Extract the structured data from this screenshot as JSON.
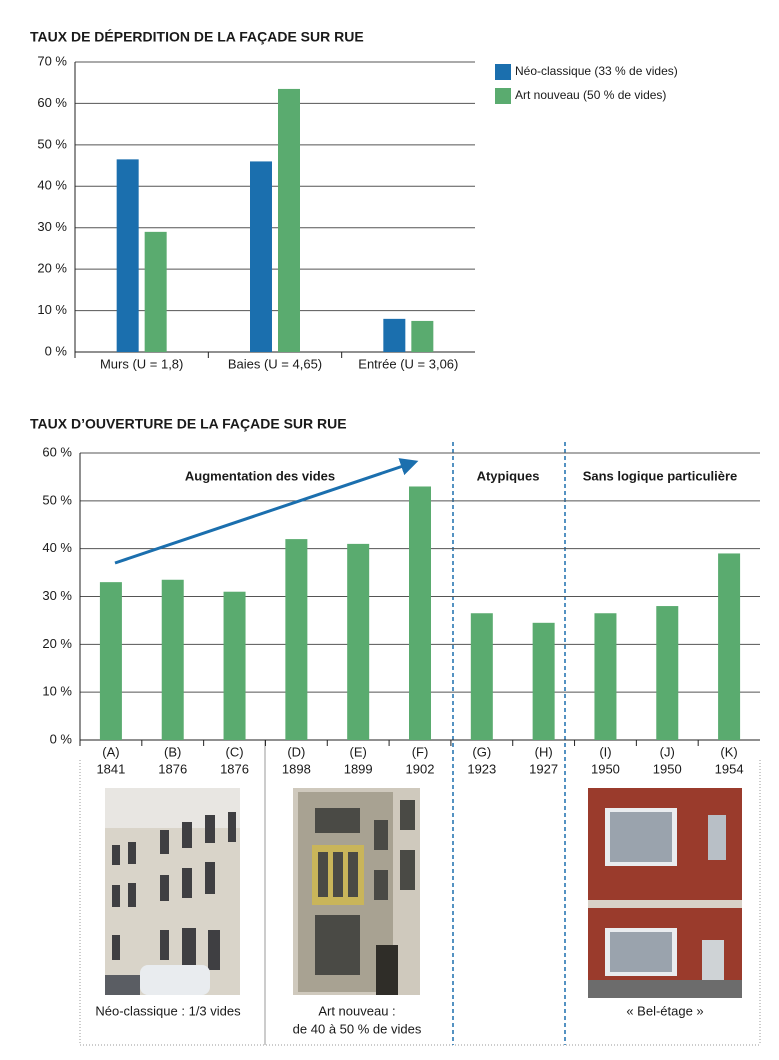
{
  "chart_data": [
    {
      "type": "bar",
      "title": "TAUX DE DÉPERDITION DE LA FAÇADE SUR RUE",
      "categories": [
        "Murs (U = 1,8)",
        "Baies (U = 4,65)",
        "Entrée (U = 3,06)"
      ],
      "series": [
        {
          "name": "Néo-classique (33 % de vides)",
          "color": "#1b6fae",
          "values": [
            46.5,
            46,
            8
          ]
        },
        {
          "name": "Art nouveau (50 % de vides)",
          "color": "#5aab6f",
          "values": [
            29,
            63.5,
            7.5
          ]
        }
      ],
      "ylim": [
        0,
        70
      ],
      "yticks": [
        {
          "value": 0,
          "label": "0 %"
        },
        {
          "value": 10,
          "label": "10 %"
        },
        {
          "value": 20,
          "label": "20 %"
        },
        {
          "value": 30,
          "label": "30 %"
        },
        {
          "value": 40,
          "label": "40 %"
        },
        {
          "value": 50,
          "label": "50 %"
        },
        {
          "value": 60,
          "label": "60 %"
        },
        {
          "value": 70,
          "label": "70 %"
        }
      ],
      "grid": true,
      "legend": "right"
    },
    {
      "type": "bar",
      "title": "TAUX D’OUVERTURE DE LA FAÇADE SUR RUE",
      "categories": [
        "(A)",
        "(B)",
        "(C)",
        "(D)",
        "(E)",
        "(F)",
        "(G)",
        "(H)",
        "(I)",
        "(J)",
        "(K)"
      ],
      "category_years": [
        "1841",
        "1876",
        "1876",
        "1898",
        "1899",
        "1902",
        "1923",
        "1927",
        "1950",
        "1950",
        "1954"
      ],
      "values": [
        33,
        33.5,
        31,
        42,
        41,
        53,
        26.5,
        24.5,
        26.5,
        28,
        39
      ],
      "color": "#5aab6f",
      "ylim": [
        0,
        60
      ],
      "yticks": [
        {
          "value": 0,
          "label": "0 %"
        },
        {
          "value": 10,
          "label": "10 %"
        },
        {
          "value": 20,
          "label": "20 %"
        },
        {
          "value": 30,
          "label": "30 %"
        },
        {
          "value": 40,
          "label": "40 %"
        },
        {
          "value": 50,
          "label": "50 %"
        },
        {
          "value": 60,
          "label": "60 %"
        }
      ],
      "grid": true,
      "annotations": [
        "Augmentation des vides",
        "Atypiques",
        "Sans logique particulière"
      ]
    }
  ],
  "photos": [
    {
      "caption": [
        "Néo-classique : 1/3 vides"
      ]
    },
    {
      "caption": [
        "Art nouveau :",
        "de 40 à 50 % de vides"
      ]
    },
    {
      "caption": [
        "« Bel-étage »"
      ]
    }
  ]
}
